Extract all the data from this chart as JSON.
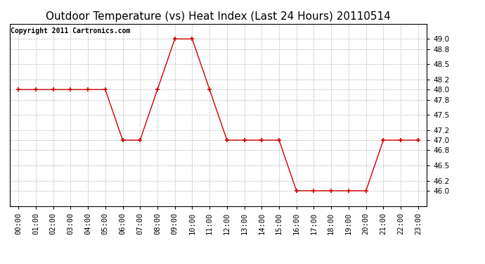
{
  "title": "Outdoor Temperature (vs) Heat Index (Last 24 Hours) 20110514",
  "copyright": "Copyright 2011 Cartronics.com",
  "x_labels": [
    "00:00",
    "01:00",
    "02:00",
    "03:00",
    "04:00",
    "05:00",
    "06:00",
    "07:00",
    "08:00",
    "09:00",
    "10:00",
    "11:00",
    "12:00",
    "13:00",
    "14:00",
    "15:00",
    "16:00",
    "17:00",
    "18:00",
    "19:00",
    "20:00",
    "21:00",
    "22:00",
    "23:00"
  ],
  "y_values": [
    48.0,
    48.0,
    48.0,
    48.0,
    48.0,
    48.0,
    47.0,
    47.0,
    48.0,
    49.0,
    49.0,
    48.0,
    47.0,
    47.0,
    47.0,
    47.0,
    46.0,
    46.0,
    46.0,
    46.0,
    46.0,
    47.0,
    47.0,
    47.0
  ],
  "ylim": [
    45.7,
    49.3
  ],
  "yticks": [
    46.0,
    46.2,
    46.5,
    46.8,
    47.0,
    47.2,
    47.5,
    47.8,
    48.0,
    48.2,
    48.5,
    48.8,
    49.0
  ],
  "line_color": "#cc0000",
  "marker": "+",
  "marker_color": "#cc0000",
  "bg_color": "#ffffff",
  "plot_bg_color": "#ffffff",
  "grid_color": "#bbbbbb",
  "title_fontsize": 11,
  "copyright_fontsize": 7,
  "tick_fontsize": 7.5
}
